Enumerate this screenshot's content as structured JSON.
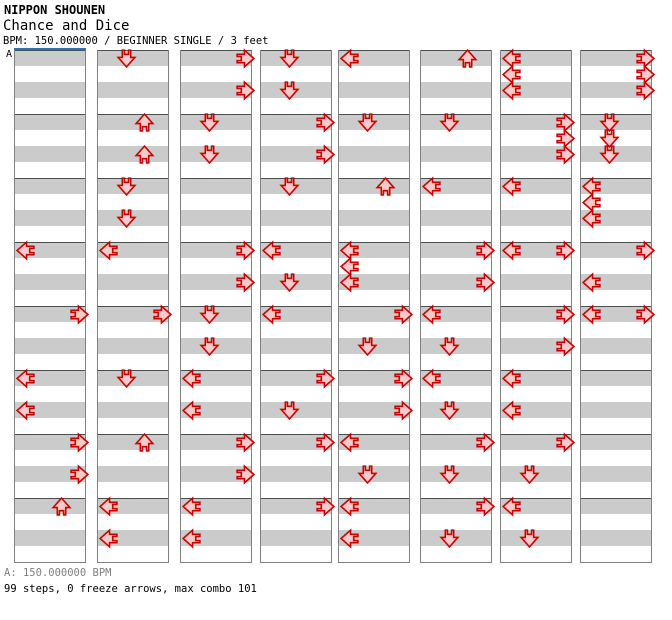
{
  "header": {
    "artist": "NIPPON SHOUNEN",
    "title": "Chance and Dice",
    "meta": "BPM: 150.000000 / BEGINNER SINGLE / 3 feet"
  },
  "footer": {
    "bpm_line": "A: 150.000000 BPM",
    "stats_line": "99 steps, 0 freeze arrows, max combo 101"
  },
  "colors": {
    "stripe_gray": "#cbcbcb",
    "stripe_white": "#ffffff",
    "measure_line": "#4d4d4d",
    "column_border": "#808080",
    "marker_blue": "#3170c0",
    "arrow_outline": "#c80000",
    "arrow_fill": "#f8caca",
    "footer_gray": "#808080"
  },
  "chart": {
    "marker_label": "A",
    "marker_bpm": "150.000000",
    "total_steps": 99,
    "freeze_arrows": 0,
    "max_combo": 101,
    "columns_count": 8,
    "measures_per_column": 8,
    "rows_per_measure": 4,
    "lanes": [
      "left",
      "down",
      "up",
      "right"
    ],
    "columns": [
      [
        [
          12,
          "L"
        ],
        [
          16,
          "R"
        ],
        [
          20,
          "L"
        ],
        [
          22,
          "L"
        ],
        [
          24,
          "R"
        ],
        [
          26,
          "R"
        ],
        [
          28,
          "U"
        ]
      ],
      [
        [
          0,
          "D"
        ],
        [
          4,
          "U"
        ],
        [
          6,
          "U"
        ],
        [
          8,
          "D"
        ],
        [
          10,
          "D"
        ],
        [
          12,
          "L"
        ],
        [
          16,
          "R"
        ],
        [
          20,
          "D"
        ],
        [
          24,
          "U"
        ],
        [
          28,
          "L"
        ],
        [
          30,
          "L"
        ]
      ],
      [
        [
          0,
          "R"
        ],
        [
          2,
          "R"
        ],
        [
          4,
          "D"
        ],
        [
          6,
          "D"
        ],
        [
          12,
          "R"
        ],
        [
          14,
          "R"
        ],
        [
          16,
          "D"
        ],
        [
          18,
          "D"
        ],
        [
          20,
          "L"
        ],
        [
          22,
          "L"
        ],
        [
          24,
          "R"
        ],
        [
          26,
          "R"
        ],
        [
          28,
          "L"
        ],
        [
          30,
          "L"
        ]
      ],
      [
        [
          0,
          "D"
        ],
        [
          2,
          "D"
        ],
        [
          4,
          "R"
        ],
        [
          6,
          "R"
        ],
        [
          8,
          "D"
        ],
        [
          12,
          "L"
        ],
        [
          14,
          "D"
        ],
        [
          16,
          "L"
        ],
        [
          20,
          "R"
        ],
        [
          22,
          "D"
        ],
        [
          24,
          "R"
        ],
        [
          28,
          "R"
        ]
      ],
      [
        [
          0,
          "L"
        ],
        [
          4,
          "D"
        ],
        [
          8,
          "U"
        ],
        [
          12,
          "L"
        ],
        [
          13,
          "L"
        ],
        [
          14,
          "L"
        ],
        [
          16,
          "R"
        ],
        [
          18,
          "D"
        ],
        [
          20,
          "R"
        ],
        [
          22,
          "R"
        ],
        [
          24,
          "L"
        ],
        [
          26,
          "D"
        ],
        [
          28,
          "L"
        ],
        [
          30,
          "L"
        ]
      ],
      [
        [
          0,
          "U"
        ],
        [
          4,
          "D"
        ],
        [
          8,
          "L"
        ],
        [
          12,
          "R"
        ],
        [
          14,
          "R"
        ],
        [
          16,
          "L"
        ],
        [
          18,
          "D"
        ],
        [
          20,
          "L"
        ],
        [
          22,
          "D"
        ],
        [
          24,
          "R"
        ],
        [
          26,
          "D"
        ],
        [
          28,
          "R"
        ],
        [
          30,
          "D"
        ]
      ],
      [
        [
          0,
          "L"
        ],
        [
          1,
          "L"
        ],
        [
          2,
          "L"
        ],
        [
          4,
          "R"
        ],
        [
          5,
          "R"
        ],
        [
          6,
          "R"
        ],
        [
          8,
          "L"
        ],
        [
          12,
          "L"
        ],
        [
          12,
          "R"
        ],
        [
          16,
          "R"
        ],
        [
          18,
          "R"
        ],
        [
          20,
          "L"
        ],
        [
          22,
          "L"
        ],
        [
          24,
          "R"
        ],
        [
          26,
          "D"
        ],
        [
          28,
          "L"
        ],
        [
          30,
          "D"
        ]
      ],
      [
        [
          0,
          "R"
        ],
        [
          1,
          "R"
        ],
        [
          2,
          "R"
        ],
        [
          4,
          "D"
        ],
        [
          5,
          "D"
        ],
        [
          6,
          "D"
        ],
        [
          8,
          "L"
        ],
        [
          9,
          "L"
        ],
        [
          10,
          "L"
        ],
        [
          12,
          "R"
        ],
        [
          14,
          "L"
        ],
        [
          16,
          "L"
        ],
        [
          16,
          "R"
        ]
      ]
    ]
  }
}
